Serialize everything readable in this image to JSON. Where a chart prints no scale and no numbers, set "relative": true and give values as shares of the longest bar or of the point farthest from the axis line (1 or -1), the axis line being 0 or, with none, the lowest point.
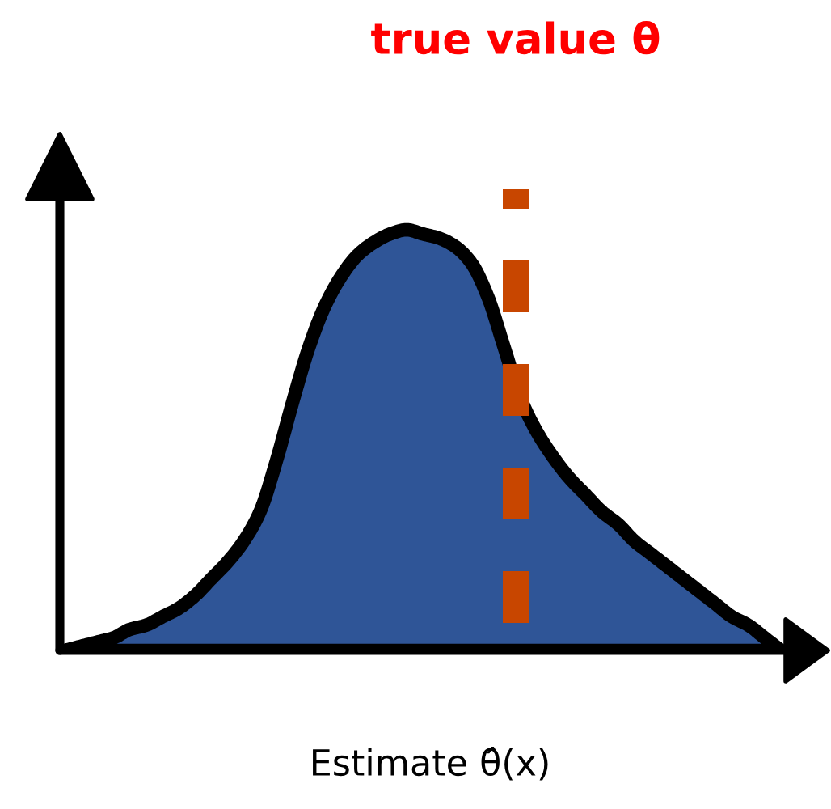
{
  "chart_data": {
    "type": "area",
    "relative": true,
    "xlabel": "Estimate θ̂(x)",
    "categories": [
      null,
      null,
      null,
      null,
      null,
      null,
      null,
      null,
      null,
      null,
      null,
      null,
      null,
      null,
      null,
      null,
      null,
      null,
      null,
      null,
      null,
      null,
      null,
      null,
      null,
      null,
      null,
      null,
      null,
      null,
      null,
      null,
      null,
      null,
      null,
      null,
      null,
      null,
      null,
      null,
      null,
      null,
      null,
      null,
      null
    ],
    "color": "#2f5597",
    "values": [
      0,
      0.01,
      0.02,
      0.03,
      0.05,
      0.06,
      0.08,
      0.1,
      0.13,
      0.17,
      0.21,
      0.26,
      0.33,
      0.45,
      0.59,
      0.72,
      0.82,
      0.89,
      0.94,
      0.97,
      0.99,
      1,
      0.99,
      0.98,
      0.96,
      0.92,
      0.84,
      0.72,
      0.6,
      0.52,
      0.46,
      0.41,
      0.37,
      0.33,
      0.3,
      0.26,
      0.23,
      0.2,
      0.17,
      0.14,
      0.11,
      0.08,
      0.06,
      0.03,
      0
    ],
    "annotations": [
      "true value θ"
    ]
  }
}
